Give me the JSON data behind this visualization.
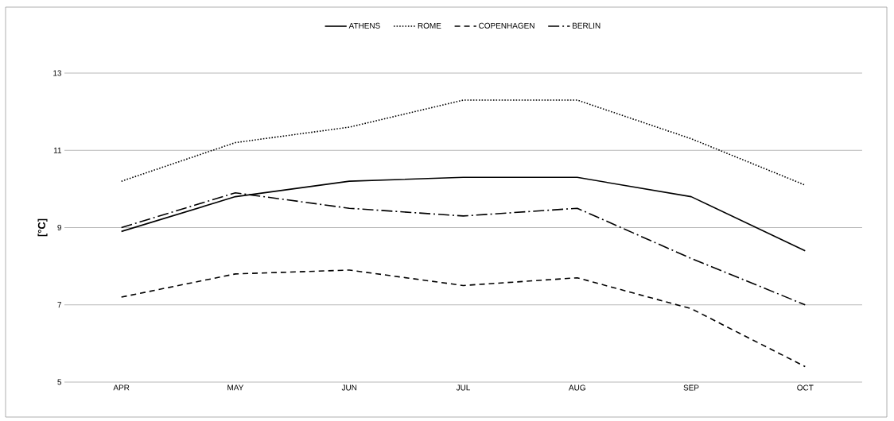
{
  "chart_data": {
    "type": "line",
    "ylabel": "[°C]",
    "categories": [
      "APR",
      "MAY",
      "JUN",
      "JUL",
      "AUG",
      "SEP",
      "OCT"
    ],
    "series": [
      {
        "name": "ATHENS",
        "color": "#000000",
        "line_style": "solid",
        "values": [
          8.9,
          9.8,
          10.2,
          10.3,
          10.3,
          9.8,
          8.4
        ]
      },
      {
        "name": "ROME",
        "color": "#000000",
        "line_style": "dotted",
        "values": [
          10.2,
          11.2,
          11.6,
          12.3,
          12.3,
          11.3,
          10.1
        ]
      },
      {
        "name": "COPENHAGEN",
        "color": "#000000",
        "line_style": "dashed",
        "values": [
          7.2,
          7.8,
          7.9,
          7.5,
          7.7,
          6.9,
          5.4
        ]
      },
      {
        "name": "BERLIN",
        "color": "#000000",
        "line_style": "dashdot",
        "values": [
          9.0,
          9.9,
          9.5,
          9.3,
          9.5,
          8.2,
          7.0
        ]
      }
    ],
    "ylim": [
      5,
      13
    ],
    "yticks": [
      5,
      7,
      9,
      11,
      13
    ],
    "grid": "y",
    "legend": "top"
  }
}
